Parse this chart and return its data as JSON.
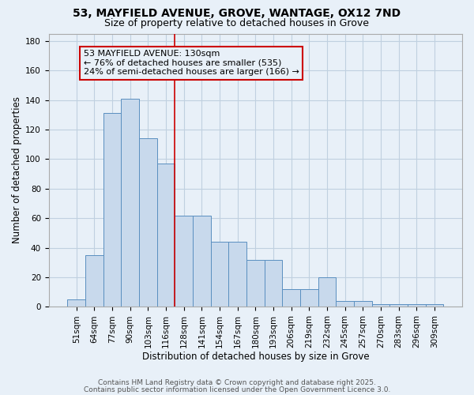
{
  "title1": "53, MAYFIELD AVENUE, GROVE, WANTAGE, OX12 7ND",
  "title2": "Size of property relative to detached houses in Grove",
  "xlabel": "Distribution of detached houses by size in Grove",
  "ylabel": "Number of detached properties",
  "categories": [
    "51sqm",
    "64sqm",
    "77sqm",
    "90sqm",
    "103sqm",
    "116sqm",
    "128sqm",
    "141sqm",
    "154sqm",
    "167sqm",
    "180sqm",
    "193sqm",
    "206sqm",
    "219sqm",
    "232sqm",
    "245sqm",
    "257sqm",
    "270sqm",
    "283sqm",
    "296sqm",
    "309sqm"
  ],
  "values": [
    5,
    35,
    131,
    141,
    114,
    97,
    62,
    62,
    44,
    44,
    32,
    32,
    12,
    12,
    20,
    4,
    4,
    2,
    2,
    2,
    2
  ],
  "bar_color": "#c8d9ec",
  "bar_edge_color": "#5a8fc0",
  "grid_color": "#c0d0e0",
  "bg_color": "#e8f0f8",
  "annotation_box_color": "#cc0000",
  "vline_color": "#cc0000",
  "vline_x_index": 6,
  "annotation_title": "53 MAYFIELD AVENUE: 130sqm",
  "annotation_line1": "← 76% of detached houses are smaller (535)",
  "annotation_line2": "24% of semi-detached houses are larger (166) →",
  "ylim": [
    0,
    185
  ],
  "yticks": [
    0,
    20,
    40,
    60,
    80,
    100,
    120,
    140,
    160,
    180
  ],
  "footer1": "Contains HM Land Registry data © Crown copyright and database right 2025.",
  "footer2": "Contains public sector information licensed under the Open Government Licence 3.0.",
  "title_fontsize": 10,
  "subtitle_fontsize": 9,
  "axis_label_fontsize": 8.5,
  "tick_fontsize": 7.5,
  "annotation_fontsize": 8,
  "footer_fontsize": 6.5
}
